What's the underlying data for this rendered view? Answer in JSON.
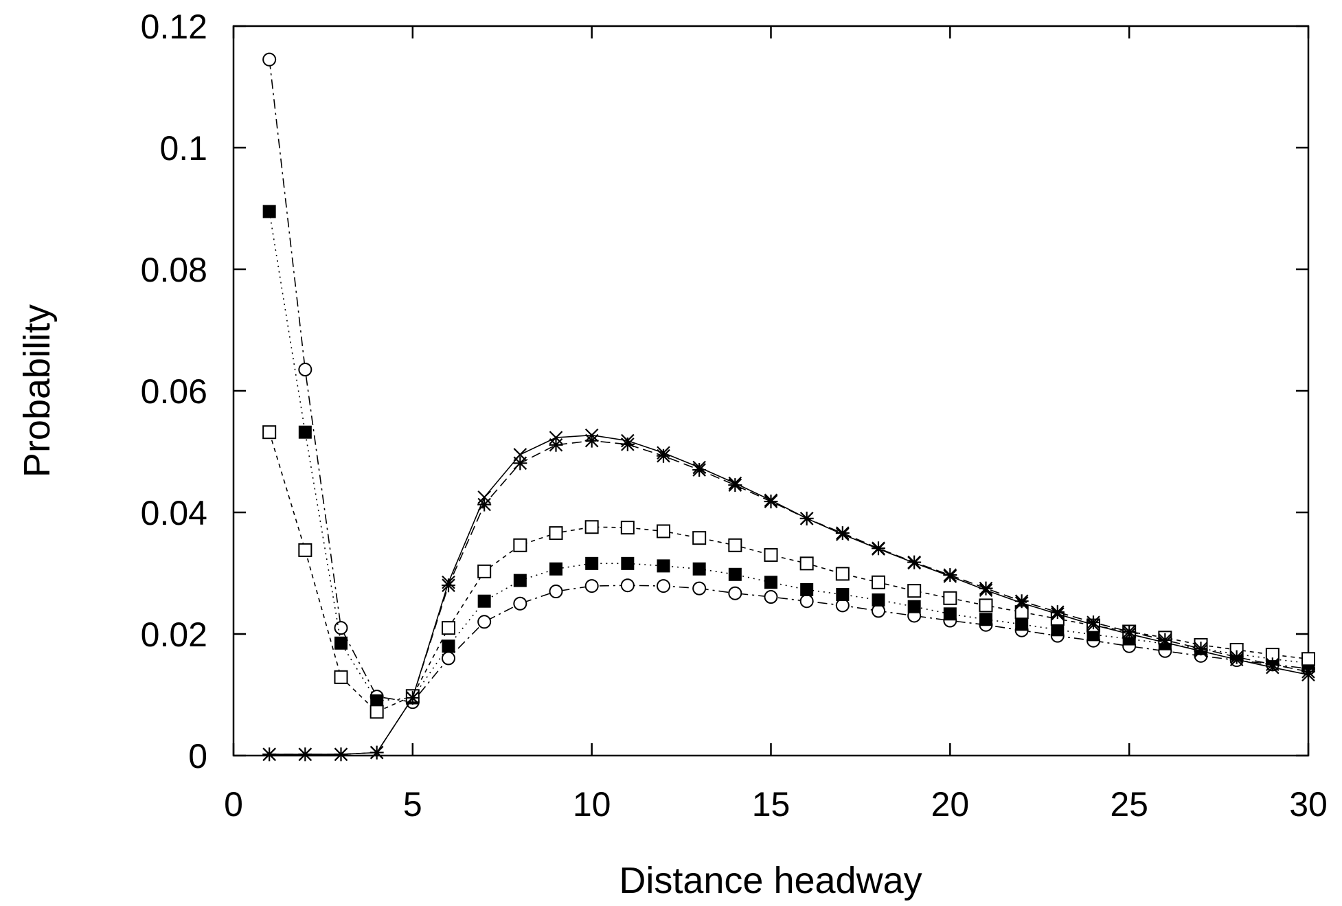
{
  "chart_data": {
    "type": "line",
    "title": "",
    "xlabel": "Distance headway",
    "ylabel": "Probability",
    "xlim": [
      0,
      30
    ],
    "ylim": [
      0,
      0.12
    ],
    "xticks": [
      "0",
      "5",
      "10",
      "15",
      "20",
      "25",
      "30"
    ],
    "yticks": [
      "0",
      "0.02",
      "0.04",
      "0.06",
      "0.08",
      "0.1",
      "0.12"
    ],
    "grid": false,
    "legend": "none",
    "x": [
      1,
      2,
      3,
      4,
      5,
      6,
      7,
      8,
      9,
      10,
      11,
      12,
      13,
      14,
      15,
      16,
      17,
      18,
      19,
      20,
      21,
      22,
      23,
      24,
      25,
      26,
      27,
      28,
      29,
      30
    ],
    "series": [
      {
        "marker": "open-circle",
        "line": "dash-dot",
        "values": [
          0.1145,
          0.0635,
          0.021,
          0.0097,
          0.0088,
          0.016,
          0.022,
          0.025,
          0.027,
          0.0279,
          0.028,
          0.0279,
          0.0275,
          0.0267,
          0.0261,
          0.0254,
          0.0247,
          0.0238,
          0.023,
          0.0222,
          0.0215,
          0.0206,
          0.0197,
          0.0189,
          0.018,
          0.0172,
          0.0164,
          0.0157,
          0.015,
          0.0143
        ]
      },
      {
        "marker": "filled-square",
        "line": "dotted",
        "values": [
          0.0895,
          0.0532,
          0.0185,
          0.009,
          0.0095,
          0.018,
          0.0254,
          0.0288,
          0.0307,
          0.0316,
          0.0316,
          0.0312,
          0.0307,
          0.0298,
          0.0285,
          0.0273,
          0.0265,
          0.0256,
          0.0245,
          0.0233,
          0.0224,
          0.0216,
          0.0207,
          0.0199,
          0.0192,
          0.0184,
          0.0176,
          0.0167,
          0.0159,
          0.0152
        ]
      },
      {
        "marker": "open-square",
        "line": "short-dash",
        "values": [
          0.0532,
          0.0338,
          0.0129,
          0.0072,
          0.0098,
          0.021,
          0.0303,
          0.0346,
          0.0366,
          0.0376,
          0.0375,
          0.0369,
          0.0358,
          0.0346,
          0.033,
          0.0316,
          0.0299,
          0.0285,
          0.0271,
          0.0259,
          0.0247,
          0.0236,
          0.0225,
          0.0214,
          0.0204,
          0.0194,
          0.0182,
          0.0174,
          0.0166,
          0.0159
        ]
      },
      {
        "marker": "x-cross",
        "line": "solid",
        "values": [
          0.0002,
          0.0002,
          0.0002,
          0.0005,
          0.0095,
          0.0285,
          0.0425,
          0.0495,
          0.0523,
          0.0527,
          0.0518,
          0.0498,
          0.0474,
          0.0448,
          0.042,
          0.039,
          0.0364,
          0.034,
          0.0317,
          0.0295,
          0.0272,
          0.0251,
          0.0233,
          0.0215,
          0.02,
          0.0186,
          0.0172,
          0.0158,
          0.0145,
          0.0133
        ]
      },
      {
        "marker": "asterisk",
        "line": "long-dash",
        "values": [
          0.0002,
          0.0002,
          0.0002,
          0.0005,
          0.0095,
          0.028,
          0.0413,
          0.0481,
          0.0511,
          0.0518,
          0.0512,
          0.0493,
          0.047,
          0.0445,
          0.0418,
          0.039,
          0.0366,
          0.0341,
          0.0318,
          0.0297,
          0.0275,
          0.0254,
          0.0236,
          0.0219,
          0.0204,
          0.019,
          0.0176,
          0.0162,
          0.015,
          0.0138
        ]
      }
    ]
  }
}
